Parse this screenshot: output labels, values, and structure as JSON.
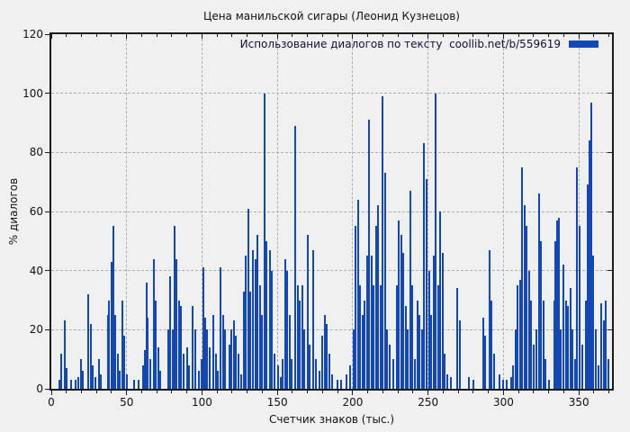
{
  "chart": {
    "colors": {
      "bar": "#1347b4",
      "background": "#f0f0f0",
      "grid": "#adadad",
      "frame": "#1a1a1a",
      "text": "#111111"
    }
  },
  "chart_data": {
    "type": "bar",
    "title": "Цена манильской сигары (Леонид Кузнецов)",
    "xlabel": "Счетчик знаков (тыс.)",
    "ylabel": "% диалогов",
    "xlim": [
      0,
      372
    ],
    "ylim": [
      0,
      120
    ],
    "xticks": [
      0,
      50,
      100,
      150,
      200,
      250,
      300,
      350
    ],
    "xtick_minor_step": 10,
    "yticks": [
      0,
      20,
      40,
      60,
      80,
      100,
      120
    ],
    "grid": true,
    "legend_position": "top-right",
    "series": [
      {
        "name": "Использование диалогов по тексту  coollib.net/b/559619",
        "style": "impulses",
        "points": [
          [
            5.5,
            3
          ],
          [
            6.5,
            12
          ],
          [
            9,
            23
          ],
          [
            10,
            7
          ],
          [
            13,
            3
          ],
          [
            16,
            3
          ],
          [
            18,
            4
          ],
          [
            19.5,
            10
          ],
          [
            21,
            6
          ],
          [
            24.5,
            32
          ],
          [
            26,
            22
          ],
          [
            27.5,
            8
          ],
          [
            29,
            4
          ],
          [
            31.5,
            10
          ],
          [
            33,
            5
          ],
          [
            37.5,
            25
          ],
          [
            38.5,
            30
          ],
          [
            40,
            43
          ],
          [
            41,
            55
          ],
          [
            42.5,
            25
          ],
          [
            44,
            12
          ],
          [
            45.5,
            6
          ],
          [
            47,
            30
          ],
          [
            48.5,
            18
          ],
          [
            50,
            5
          ],
          [
            55,
            3
          ],
          [
            58,
            3
          ],
          [
            61,
            8
          ],
          [
            62,
            13
          ],
          [
            63,
            36
          ],
          [
            64,
            24
          ],
          [
            65.5,
            10
          ],
          [
            68,
            44
          ],
          [
            69.5,
            30
          ],
          [
            71,
            14
          ],
          [
            72.5,
            6
          ],
          [
            77.5,
            20
          ],
          [
            79,
            38
          ],
          [
            80.5,
            20
          ],
          [
            82,
            55
          ],
          [
            83,
            44
          ],
          [
            84.5,
            30
          ],
          [
            86,
            28
          ],
          [
            87.5,
            12
          ],
          [
            90,
            14
          ],
          [
            91.5,
            8
          ],
          [
            94,
            28
          ],
          [
            95.5,
            20
          ],
          [
            98,
            6
          ],
          [
            99.5,
            10
          ],
          [
            101,
            41
          ],
          [
            102,
            24
          ],
          [
            103.5,
            20
          ],
          [
            105,
            14
          ],
          [
            107.5,
            25
          ],
          [
            109,
            12
          ],
          [
            110.5,
            6
          ],
          [
            112.5,
            41
          ],
          [
            114,
            25
          ],
          [
            115.5,
            20
          ],
          [
            118,
            15
          ],
          [
            119.5,
            20
          ],
          [
            121,
            23
          ],
          [
            122.5,
            18
          ],
          [
            124,
            12
          ],
          [
            126,
            5
          ],
          [
            127.5,
            33
          ],
          [
            129,
            45
          ],
          [
            130.5,
            61
          ],
          [
            132,
            33
          ],
          [
            134,
            47
          ],
          [
            135.5,
            44
          ],
          [
            137,
            52
          ],
          [
            138.5,
            35
          ],
          [
            140,
            25
          ],
          [
            141.5,
            100
          ],
          [
            143,
            50
          ],
          [
            145,
            47
          ],
          [
            146.5,
            40
          ],
          [
            148,
            12
          ],
          [
            150.5,
            8
          ],
          [
            152,
            4
          ],
          [
            153.5,
            10
          ],
          [
            155,
            44
          ],
          [
            156.5,
            40
          ],
          [
            158,
            25
          ],
          [
            159.5,
            10
          ],
          [
            162,
            89
          ],
          [
            163.5,
            35
          ],
          [
            165,
            30
          ],
          [
            166.5,
            35
          ],
          [
            168,
            20
          ],
          [
            170,
            52
          ],
          [
            171.5,
            15
          ],
          [
            174,
            47
          ],
          [
            175.5,
            10
          ],
          [
            178,
            6
          ],
          [
            180,
            18
          ],
          [
            181.5,
            25
          ],
          [
            183,
            22
          ],
          [
            184.5,
            12
          ],
          [
            186,
            5
          ],
          [
            190,
            3
          ],
          [
            192,
            3
          ],
          [
            196,
            5
          ],
          [
            198,
            8
          ],
          [
            200.5,
            20
          ],
          [
            202,
            55
          ],
          [
            203.5,
            64
          ],
          [
            205,
            35
          ],
          [
            206.5,
            25
          ],
          [
            208,
            30
          ],
          [
            209.5,
            45
          ],
          [
            211,
            91
          ],
          [
            212.5,
            45
          ],
          [
            214,
            35
          ],
          [
            215.5,
            55
          ],
          [
            217,
            62
          ],
          [
            218.5,
            35
          ],
          [
            220,
            99
          ],
          [
            221.5,
            73
          ],
          [
            223,
            20
          ],
          [
            224.5,
            15
          ],
          [
            227,
            10
          ],
          [
            229,
            35
          ],
          [
            230.5,
            57
          ],
          [
            232,
            52
          ],
          [
            233.5,
            46
          ],
          [
            235,
            28
          ],
          [
            236.5,
            20
          ],
          [
            238,
            67
          ],
          [
            239.5,
            35
          ],
          [
            241.5,
            10
          ],
          [
            243,
            30
          ],
          [
            244.5,
            25
          ],
          [
            246,
            20
          ],
          [
            247.5,
            83
          ],
          [
            249,
            71
          ],
          [
            250.5,
            40
          ],
          [
            252,
            25
          ],
          [
            253.5,
            45
          ],
          [
            255,
            100
          ],
          [
            256.5,
            35
          ],
          [
            258,
            60
          ],
          [
            259.5,
            46
          ],
          [
            261,
            12
          ],
          [
            263,
            5
          ],
          [
            265,
            4
          ],
          [
            269.5,
            34
          ],
          [
            271,
            23
          ],
          [
            277,
            4
          ],
          [
            280,
            3
          ],
          [
            286.5,
            24
          ],
          [
            288,
            18
          ],
          [
            290.5,
            47
          ],
          [
            292,
            30
          ],
          [
            293.5,
            12
          ],
          [
            297.5,
            5
          ],
          [
            300,
            3
          ],
          [
            302,
            3
          ],
          [
            305,
            4
          ],
          [
            306.5,
            8
          ],
          [
            308,
            20
          ],
          [
            309.5,
            35
          ],
          [
            311,
            37
          ],
          [
            312.5,
            75
          ],
          [
            314,
            62
          ],
          [
            315.5,
            55
          ],
          [
            317,
            40
          ],
          [
            318.5,
            30
          ],
          [
            320,
            15
          ],
          [
            322,
            20
          ],
          [
            323.5,
            66
          ],
          [
            325,
            50
          ],
          [
            326.5,
            30
          ],
          [
            328,
            10
          ],
          [
            330,
            3
          ],
          [
            333.5,
            30
          ],
          [
            334.5,
            50
          ],
          [
            335.5,
            57
          ],
          [
            336.5,
            58
          ],
          [
            338,
            20
          ],
          [
            340,
            42
          ],
          [
            341.5,
            30
          ],
          [
            343,
            28
          ],
          [
            344.5,
            34
          ],
          [
            346,
            20
          ],
          [
            347.5,
            10
          ],
          [
            349,
            75
          ],
          [
            350.5,
            55
          ],
          [
            352,
            15
          ],
          [
            354.5,
            30
          ],
          [
            356,
            69
          ],
          [
            357,
            84
          ],
          [
            358,
            97
          ],
          [
            359.5,
            45
          ],
          [
            361,
            20
          ],
          [
            363,
            8
          ],
          [
            365,
            29
          ],
          [
            366.5,
            23
          ],
          [
            368,
            30
          ],
          [
            369.5,
            10
          ]
        ]
      }
    ]
  }
}
